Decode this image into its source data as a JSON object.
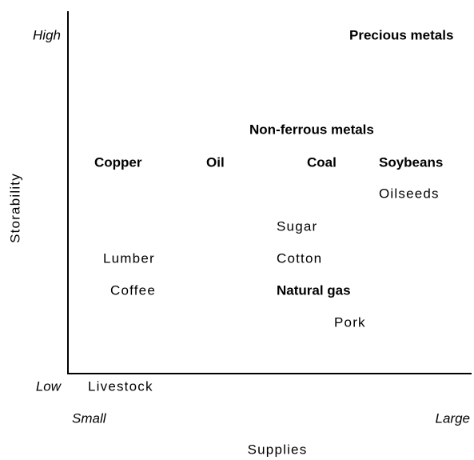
{
  "axes": {
    "y_label": "Storability",
    "y_high": "High",
    "y_low": "Low",
    "x_label": "Supplies",
    "x_small": "Small",
    "x_large": "Large"
  },
  "items": [
    {
      "label": "Precious metals",
      "bold": true
    },
    {
      "label": "Non-ferrous metals",
      "bold": true
    },
    {
      "label": "Copper",
      "bold": true
    },
    {
      "label": "Oil",
      "bold": true
    },
    {
      "label": "Coal",
      "bold": true
    },
    {
      "label": "Soybeans",
      "bold": true
    },
    {
      "label": "Oilseeds",
      "bold": false
    },
    {
      "label": "Sugar",
      "bold": false
    },
    {
      "label": "Lumber",
      "bold": false
    },
    {
      "label": "Cotton",
      "bold": false
    },
    {
      "label": "Coffee",
      "bold": false
    },
    {
      "label": "Natural gas",
      "bold": true
    },
    {
      "label": "Pork",
      "bold": false
    },
    {
      "label": "Livestock",
      "bold": false
    }
  ]
}
